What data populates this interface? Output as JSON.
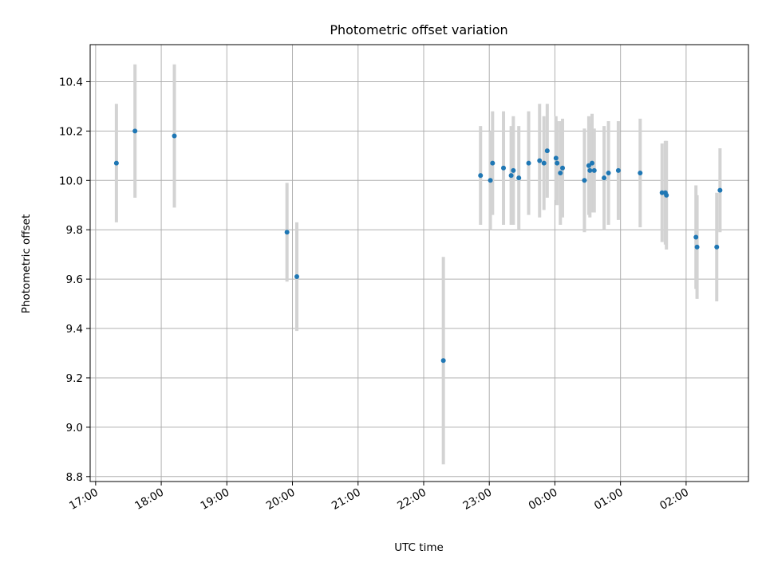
{
  "chart_data": {
    "type": "scatter",
    "title": "Photometric offset variation",
    "xlabel": "UTC time",
    "ylabel": "Photometric offset",
    "x_unit": "UTC time (hh:mm), starting 17:00 on day one; times past midnight continue to the next day",
    "xlim": [
      "16:55",
      "26:57"
    ],
    "ylim": [
      8.78,
      10.55
    ],
    "x_ticks": [
      "17:00",
      "18:00",
      "19:00",
      "20:00",
      "21:00",
      "22:00",
      "23:00",
      "00:00",
      "01:00",
      "02:00"
    ],
    "y_ticks": [
      "8.8",
      "9.0",
      "9.2",
      "9.4",
      "9.6",
      "9.8",
      "10.0",
      "10.2",
      "10.4"
    ],
    "grid": true,
    "errorbar_color": "#d3d3d3",
    "marker_color": "#1f77b4",
    "points": [
      {
        "t": "17:19",
        "y": 10.07,
        "err": 0.24
      },
      {
        "t": "17:36",
        "y": 10.2,
        "err": 0.27
      },
      {
        "t": "18:12",
        "y": 10.18,
        "err": 0.29
      },
      {
        "t": "19:55",
        "y": 9.79,
        "err": 0.2
      },
      {
        "t": "20:04",
        "y": 9.61,
        "err": 0.22
      },
      {
        "t": "22:18",
        "y": 9.27,
        "err": 0.42
      },
      {
        "t": "22:52",
        "y": 10.02,
        "err": 0.2
      },
      {
        "t": "23:01",
        "y": 10.0,
        "err": 0.2
      },
      {
        "t": "23:03",
        "y": 10.07,
        "err": 0.21
      },
      {
        "t": "23:13",
        "y": 10.05,
        "err": 0.23
      },
      {
        "t": "23:20",
        "y": 10.02,
        "err": 0.2
      },
      {
        "t": "23:22",
        "y": 10.04,
        "err": 0.22
      },
      {
        "t": "23:27",
        "y": 10.01,
        "err": 0.21
      },
      {
        "t": "23:36",
        "y": 10.07,
        "err": 0.21
      },
      {
        "t": "23:46",
        "y": 10.08,
        "err": 0.23
      },
      {
        "t": "23:50",
        "y": 10.07,
        "err": 0.19
      },
      {
        "t": "23:53",
        "y": 10.12,
        "err": 0.19
      },
      {
        "t": "24:01",
        "y": 10.09,
        "err": 0.17
      },
      {
        "t": "24:02",
        "y": 10.07,
        "err": 0.17
      },
      {
        "t": "24:05",
        "y": 10.03,
        "err": 0.21
      },
      {
        "t": "24:07",
        "y": 10.05,
        "err": 0.2
      },
      {
        "t": "24:27",
        "y": 10.0,
        "err": 0.21
      },
      {
        "t": "24:31",
        "y": 10.06,
        "err": 0.2
      },
      {
        "t": "24:32",
        "y": 10.04,
        "err": 0.19
      },
      {
        "t": "24:34",
        "y": 10.07,
        "err": 0.2
      },
      {
        "t": "24:36",
        "y": 10.04,
        "err": 0.17
      },
      {
        "t": "24:45",
        "y": 10.01,
        "err": 0.21
      },
      {
        "t": "24:49",
        "y": 10.03,
        "err": 0.21
      },
      {
        "t": "24:58",
        "y": 10.04,
        "err": 0.2
      },
      {
        "t": "25:18",
        "y": 10.03,
        "err": 0.22
      },
      {
        "t": "25:38",
        "y": 9.95,
        "err": 0.2
      },
      {
        "t": "25:41",
        "y": 9.95,
        "err": 0.21
      },
      {
        "t": "25:42",
        "y": 9.94,
        "err": 0.22
      },
      {
        "t": "26:09",
        "y": 9.77,
        "err": 0.21
      },
      {
        "t": "26:10",
        "y": 9.73,
        "err": 0.21
      },
      {
        "t": "26:28",
        "y": 9.73,
        "err": 0.22
      },
      {
        "t": "26:31",
        "y": 9.96,
        "err": 0.17
      }
    ]
  }
}
